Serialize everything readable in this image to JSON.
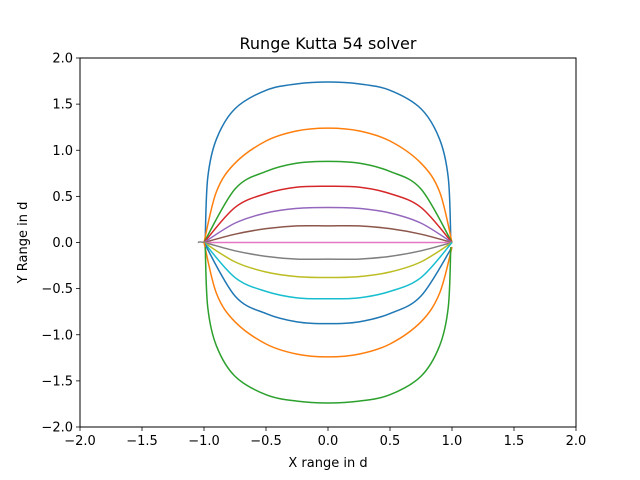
{
  "chart_data": {
    "type": "line",
    "title": "Runge Kutta 54 solver",
    "xlabel": "X range in d",
    "ylabel": "Y Range in d",
    "xlim": [
      -2.0,
      2.0
    ],
    "ylim": [
      -2.0,
      2.0
    ],
    "xticks": [
      -2.0,
      -1.5,
      -1.0,
      -0.5,
      0.0,
      0.5,
      1.0,
      1.5,
      2.0
    ],
    "yticks": [
      -2.0,
      -1.5,
      -1.0,
      -0.5,
      0.0,
      0.5,
      1.0,
      1.5,
      2.0
    ],
    "xtick_labels": [
      "−2.0",
      "−1.5",
      "−1.0",
      "−0.5",
      "0.0",
      "0.5",
      "1.0",
      "1.5",
      "2.0"
    ],
    "ytick_labels": [
      "−2.0",
      "−1.5",
      "−1.0",
      "−0.5",
      "0.0",
      "0.5",
      "1.0",
      "1.5",
      "2.0"
    ],
    "grid": false,
    "series": [
      {
        "color": "#1f77b4",
        "peak_y": 1.74,
        "x": [
          -0.99,
          -0.97,
          -0.9,
          -0.75,
          -0.5,
          -0.25,
          0.0,
          0.25,
          0.5,
          0.75,
          0.9,
          0.97,
          0.99
        ],
        "y": [
          0.05,
          0.7,
          1.12,
          1.45,
          1.65,
          1.72,
          1.74,
          1.72,
          1.65,
          1.45,
          1.12,
          0.7,
          0.05
        ]
      },
      {
        "color": "#ff7f0e",
        "peak_y": 1.24,
        "x": [
          -1.0,
          -0.9,
          -0.75,
          -0.5,
          -0.25,
          0.0,
          0.25,
          0.5,
          0.75,
          0.9,
          1.0
        ],
        "y": [
          0.0,
          0.55,
          0.86,
          1.1,
          1.21,
          1.24,
          1.21,
          1.1,
          0.86,
          0.55,
          0.0
        ]
      },
      {
        "color": "#2ca02c",
        "peak_y": 0.88,
        "x": [
          -1.0,
          -0.75,
          -0.5,
          -0.25,
          0.0,
          0.25,
          0.5,
          0.75,
          1.0
        ],
        "y": [
          0.0,
          0.58,
          0.77,
          0.86,
          0.88,
          0.86,
          0.77,
          0.58,
          0.0
        ]
      },
      {
        "color": "#d62728",
        "peak_y": 0.61,
        "x": [
          -1.0,
          -0.75,
          -0.5,
          -0.25,
          0.0,
          0.25,
          0.5,
          0.75,
          1.0
        ],
        "y": [
          0.0,
          0.38,
          0.53,
          0.6,
          0.61,
          0.6,
          0.53,
          0.38,
          0.0
        ]
      },
      {
        "color": "#9467bd",
        "peak_y": 0.38,
        "x": [
          -1.0,
          -0.75,
          -0.5,
          -0.25,
          0.0,
          0.25,
          0.5,
          0.75,
          1.0
        ],
        "y": [
          0.0,
          0.21,
          0.32,
          0.37,
          0.38,
          0.37,
          0.32,
          0.21,
          0.0
        ]
      },
      {
        "color": "#8c564b",
        "peak_y": 0.18,
        "x": [
          -1.0,
          -0.75,
          -0.5,
          -0.25,
          0.0,
          0.25,
          0.5,
          0.75,
          1.0
        ],
        "y": [
          0.0,
          0.09,
          0.15,
          0.18,
          0.18,
          0.18,
          0.15,
          0.09,
          0.0
        ]
      },
      {
        "color": "#e377c2",
        "peak_y": 0.0,
        "x": [
          -1.0,
          1.0
        ],
        "y": [
          0.0,
          0.0
        ]
      },
      {
        "color": "#7f7f7f",
        "peak_y": -0.18,
        "x": [
          -1.05,
          -1.0,
          -0.75,
          -0.5,
          -0.25,
          0.0,
          0.25,
          0.5,
          0.75,
          1.0
        ],
        "y": [
          0.0,
          0.0,
          -0.09,
          -0.15,
          -0.18,
          -0.18,
          -0.18,
          -0.15,
          -0.09,
          0.0
        ]
      },
      {
        "color": "#bcbd22",
        "peak_y": -0.38,
        "x": [
          -1.0,
          -0.75,
          -0.5,
          -0.25,
          0.0,
          0.25,
          0.5,
          0.75,
          1.0
        ],
        "y": [
          0.0,
          -0.21,
          -0.32,
          -0.37,
          -0.38,
          -0.37,
          -0.32,
          -0.21,
          0.0
        ]
      },
      {
        "color": "#17becf",
        "peak_y": -0.61,
        "x": [
          -1.0,
          -0.75,
          -0.5,
          -0.25,
          0.0,
          0.25,
          0.5,
          0.75,
          1.0
        ],
        "y": [
          0.0,
          -0.38,
          -0.53,
          -0.6,
          -0.61,
          -0.6,
          -0.53,
          -0.38,
          0.0
        ]
      },
      {
        "color": "#1f77b4",
        "peak_y": -0.88,
        "x": [
          -1.0,
          -0.75,
          -0.5,
          -0.25,
          0.0,
          0.25,
          0.5,
          0.75,
          1.0
        ],
        "y": [
          0.0,
          -0.58,
          -0.77,
          -0.86,
          -0.88,
          -0.86,
          -0.77,
          -0.58,
          -0.05
        ]
      },
      {
        "color": "#ff7f0e",
        "peak_y": -1.24,
        "x": [
          -1.0,
          -0.9,
          -0.75,
          -0.5,
          -0.25,
          0.0,
          0.25,
          0.5,
          0.75,
          0.9,
          1.0
        ],
        "y": [
          0.0,
          -0.55,
          -0.86,
          -1.1,
          -1.21,
          -1.24,
          -1.21,
          -1.1,
          -0.86,
          -0.55,
          -0.05
        ]
      },
      {
        "color": "#2ca02c",
        "peak_y": -1.74,
        "x": [
          -0.99,
          -0.97,
          -0.9,
          -0.75,
          -0.5,
          -0.25,
          0.0,
          0.25,
          0.5,
          0.75,
          0.9,
          0.97,
          0.99
        ],
        "y": [
          -0.05,
          -0.7,
          -1.12,
          -1.45,
          -1.65,
          -1.72,
          -1.74,
          -1.72,
          -1.65,
          -1.45,
          -1.12,
          -0.7,
          -0.05
        ]
      }
    ]
  }
}
